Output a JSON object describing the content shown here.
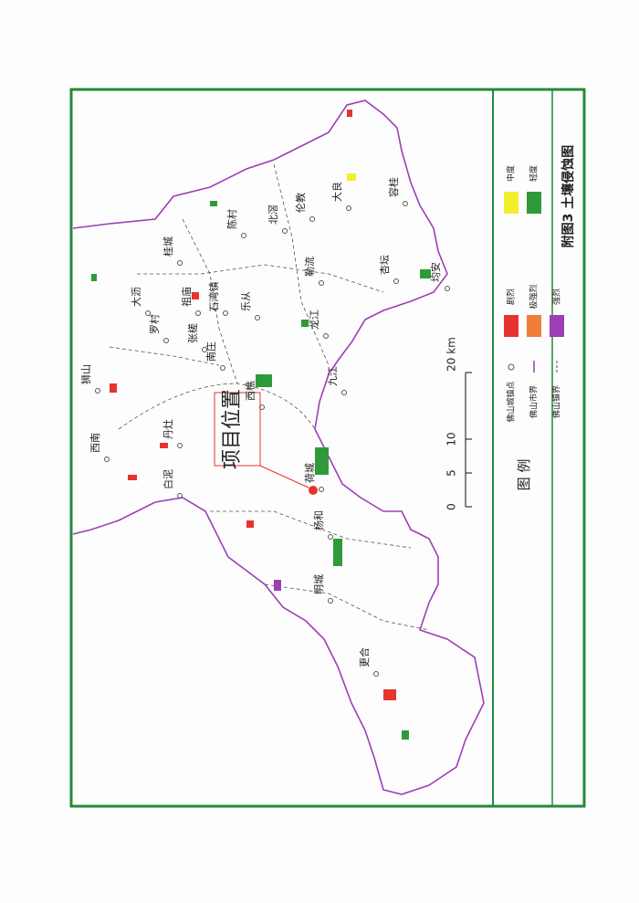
{
  "title": "附图3 土壤侵蚀图",
  "legend": {
    "heading": "图 例",
    "symbols": [
      "佛山城镇点",
      "佛山市界",
      "佛山镇界"
    ],
    "erosion": [
      {
        "label": "剧烈",
        "color": "#e8322f"
      },
      {
        "label": "极强烈",
        "color": "#f07d3a"
      },
      {
        "label": "强烈",
        "color": "#9b3fb5"
      },
      {
        "label": "中度",
        "color": "#f2ee2e"
      },
      {
        "label": "轻度",
        "color": "#2f9a3a"
      }
    ]
  },
  "scale": {
    "labels": [
      "0",
      "5",
      "10",
      "20 km"
    ]
  },
  "project_label": "项目位置",
  "places": [
    "西南",
    "狮山",
    "大沥",
    "桂城",
    "陈村",
    "北滘",
    "伦教",
    "大良",
    "容桂",
    "勒流",
    "杏坛",
    "均安",
    "龙江",
    "乐从",
    "石湾镇",
    "祖庙",
    "张槎",
    "罗村",
    "南庄",
    "西樵",
    "九江",
    "丹灶",
    "白泥",
    "荷城",
    "杨和",
    "明城",
    "更合"
  ]
}
